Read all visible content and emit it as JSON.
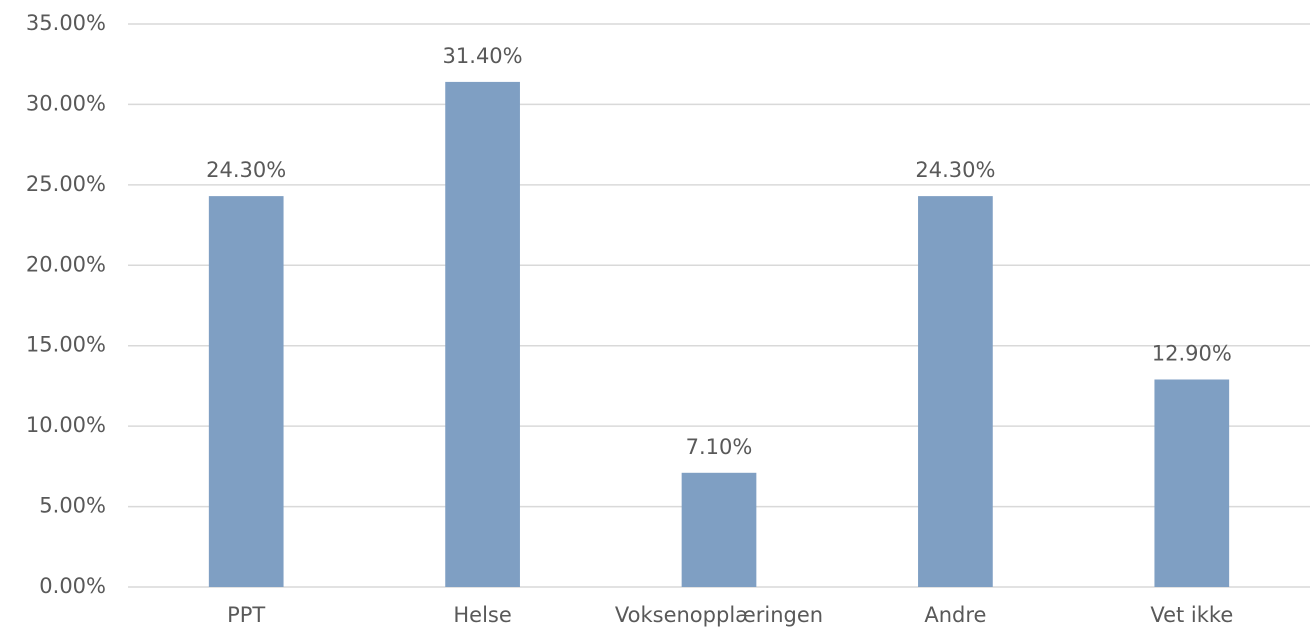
{
  "chart_data": {
    "type": "bar",
    "categories": [
      "PPT",
      "Helse",
      "Voksenopplæringen",
      "Andre",
      "Vet ikke"
    ],
    "values": [
      24.3,
      31.4,
      7.1,
      24.3,
      12.9
    ],
    "value_labels": [
      "24.30%",
      "31.40%",
      "7.10%",
      "24.30%",
      "12.90%"
    ],
    "color": "#7f9fc3",
    "ylim": [
      0,
      35
    ],
    "yticks": [
      {
        "value": 0,
        "label": "0.00%"
      },
      {
        "value": 5,
        "label": "5.00%"
      },
      {
        "value": 10,
        "label": "10.00%"
      },
      {
        "value": 15,
        "label": "15.00%"
      },
      {
        "value": 20,
        "label": "20.00%"
      },
      {
        "value": 25,
        "label": "25.00%"
      },
      {
        "value": 30,
        "label": "30.00%"
      },
      {
        "value": 35,
        "label": "35.00%"
      }
    ],
    "grid": true
  }
}
